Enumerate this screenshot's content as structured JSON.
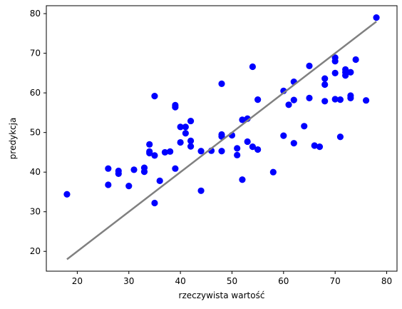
{
  "chart_data": {
    "type": "scatter",
    "title": "",
    "xlabel": "rzeczywista wartość",
    "ylabel": "predykcja",
    "xlim": [
      14.0,
      82.0
    ],
    "ylim": [
      15.0,
      82.0
    ],
    "xticks": [
      20,
      30,
      40,
      50,
      60,
      70,
      80
    ],
    "yticks": [
      20,
      30,
      40,
      50,
      60,
      70,
      80
    ],
    "grid": false,
    "colors": {
      "points": "#0000ff",
      "line": "#808080",
      "axes": "#000000"
    },
    "series": [
      {
        "type": "scatter",
        "x": [
          18,
          26,
          26,
          28,
          28,
          30,
          31,
          33,
          33,
          34,
          34,
          34,
          35,
          35,
          35,
          36,
          37,
          38,
          39,
          39,
          39,
          40,
          40,
          41,
          41,
          42,
          42,
          42,
          44,
          44,
          46,
          48,
          48,
          48,
          48,
          50,
          51,
          51,
          52,
          52,
          53,
          53,
          54,
          54,
          55,
          55,
          58,
          60,
          60,
          61,
          62,
          62,
          62,
          64,
          65,
          65,
          66,
          67,
          68,
          68,
          68,
          70,
          70,
          70,
          70,
          71,
          71,
          72,
          72,
          72,
          73,
          73,
          73,
          74,
          76,
          78
        ],
        "y": [
          34.4,
          40.9,
          36.8,
          40.3,
          39.6,
          36.5,
          40.6,
          41.1,
          40.1,
          47.0,
          45.2,
          44.8,
          59.2,
          44.2,
          32.2,
          37.8,
          45.0,
          45.2,
          56.9,
          56.4,
          40.9,
          47.5,
          51.4,
          51.4,
          49.8,
          52.9,
          47.9,
          46.5,
          45.3,
          35.3,
          45.4,
          62.3,
          49.5,
          49.0,
          45.3,
          49.3,
          46.0,
          44.3,
          53.2,
          38.1,
          53.5,
          47.7,
          66.6,
          46.4,
          58.3,
          45.7,
          40.0,
          60.5,
          49.2,
          57.0,
          62.8,
          58.2,
          47.3,
          51.6,
          66.8,
          58.7,
          46.7,
          46.4,
          63.6,
          62.1,
          57.9,
          68.9,
          68.0,
          65.0,
          58.4,
          58.3,
          48.9,
          65.9,
          65.2,
          64.4,
          65.2,
          59.3,
          58.7,
          68.4,
          58.1,
          79.0
        ]
      },
      {
        "type": "line",
        "x": [
          18,
          78
        ],
        "y": [
          18,
          78
        ]
      }
    ]
  }
}
